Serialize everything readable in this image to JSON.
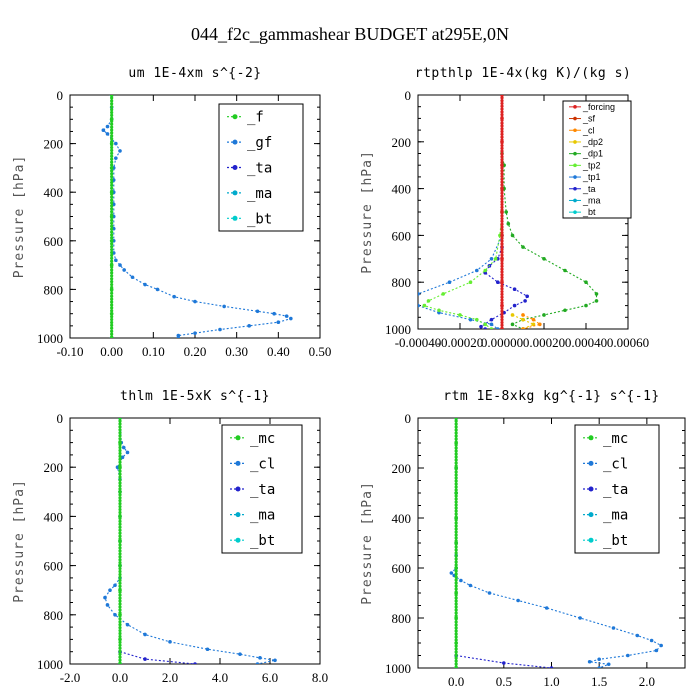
{
  "figure_title": "044_f2c_gammashear  BUDGET at295E,0N",
  "chart_data": [
    {
      "type": "line",
      "title": "um  1E-4xm s^{-2}",
      "ylabel": "Pressure [hPa]",
      "xlim": [
        -0.1,
        0.5
      ],
      "ylim": [
        1000,
        0
      ],
      "xticks": [
        "-0.10",
        "0.00",
        "0.10",
        "0.20",
        "0.30",
        "0.40",
        "0.50"
      ],
      "xtick_values": [
        -0.1,
        0.0,
        0.1,
        0.2,
        0.3,
        0.4,
        0.5
      ],
      "yticks": [
        "0",
        "200",
        "400",
        "600",
        "800",
        "1000"
      ],
      "ytick_values": [
        0,
        200,
        400,
        600,
        800,
        1000
      ],
      "legend_style": "large",
      "series": [
        {
          "name": "_f",
          "color": "#22cc22",
          "y": [
            0,
            100,
            200,
            300,
            400,
            500,
            600,
            700,
            800,
            900,
            1000
          ],
          "x": [
            0,
            0,
            0,
            0,
            0,
            0,
            0,
            0,
            0,
            0,
            0
          ]
        },
        {
          "name": "_gf",
          "color": "#1e78d8",
          "y": [
            0,
            50,
            100,
            130,
            145,
            160,
            200,
            230,
            260,
            300,
            350,
            400,
            450,
            500,
            550,
            600,
            650,
            680,
            700,
            720,
            750,
            780,
            800,
            830,
            850,
            870,
            890,
            900,
            910,
            920,
            935,
            950,
            965,
            980,
            990,
            1000
          ],
          "x": [
            0,
            0,
            0,
            -0.01,
            -0.02,
            -0.01,
            0.01,
            0.02,
            0.01,
            0.005,
            0.005,
            0.005,
            0.005,
            0.005,
            0.005,
            0.005,
            0.005,
            0.01,
            0.02,
            0.03,
            0.05,
            0.08,
            0.11,
            0.15,
            0.2,
            0.27,
            0.35,
            0.39,
            0.42,
            0.43,
            0.4,
            0.33,
            0.26,
            0.2,
            0.16,
            0.16
          ]
        },
        {
          "name": "_ta",
          "color": "#2222cc",
          "y": [
            0,
            1000
          ],
          "x": [
            0,
            0
          ]
        },
        {
          "name": "_ma",
          "color": "#00aacc",
          "y": [
            0,
            1000
          ],
          "x": [
            0,
            0
          ]
        },
        {
          "name": "_bt",
          "color": "#00cccc",
          "y": [
            0,
            1000
          ],
          "x": [
            0,
            0
          ]
        }
      ]
    },
    {
      "type": "line",
      "title": "rtpthlp  1E-4x(kg K)/(kg s)",
      "ylabel": "Pressure [hPa]",
      "xlim": [
        -0.0004,
        0.0006
      ],
      "ylim": [
        1000,
        0
      ],
      "xticks": [
        "-0.00040",
        "-0.00020",
        "0.00000",
        "0.00020",
        "0.00040",
        "0.00060"
      ],
      "xtick_values": [
        -0.0004,
        -0.0002,
        0.0,
        0.0002,
        0.0004,
        0.0006
      ],
      "yticks": [
        "0",
        "200",
        "400",
        "600",
        "800",
        "1000"
      ],
      "ytick_values": [
        0,
        200,
        400,
        600,
        800,
        1000
      ],
      "legend_style": "small",
      "series": [
        {
          "name": "_forcing",
          "color": "#dd2222",
          "y": [
            0,
            100,
            200,
            300,
            400,
            500,
            600,
            700,
            800,
            900,
            1000
          ],
          "x": [
            0,
            0,
            0,
            0,
            0,
            0,
            0,
            0,
            0,
            0,
            0
          ]
        },
        {
          "name": "_sf",
          "color": "#cc3300",
          "y": [
            0,
            1000
          ],
          "x": [
            0,
            0
          ]
        },
        {
          "name": "_cl",
          "color": "#ff8800",
          "y": [
            940,
            960,
            980,
            1000
          ],
          "x": [
            0.0001,
            0.00015,
            0.00018,
            0.0001
          ]
        },
        {
          "name": "_dp2",
          "color": "#e8c800",
          "y": [
            940,
            960,
            980,
            1000
          ],
          "x": [
            5e-05,
            0.0001,
            0.00015,
            0.0001
          ]
        },
        {
          "name": "_dp1",
          "color": "#22aa22",
          "y": [
            250,
            300,
            400,
            500,
            550,
            600,
            650,
            700,
            750,
            800,
            850,
            880,
            900,
            920,
            940,
            960,
            980,
            1000
          ],
          "x": [
            0,
            1e-05,
            1e-05,
            2e-05,
            3e-05,
            5e-05,
            0.0001,
            0.0002,
            0.0003,
            0.0004,
            0.00045,
            0.00045,
            0.0004,
            0.0003,
            0.0002,
            0.0001,
            5e-05,
            0.0001
          ]
        },
        {
          "name": "_tp2",
          "color": "#66ee33",
          "y": [
            500,
            600,
            700,
            750,
            800,
            850,
            880,
            900,
            920,
            940,
            960,
            980,
            1000
          ],
          "x": [
            0,
            -1e-05,
            -3e-05,
            -8e-05,
            -0.00015,
            -0.00028,
            -0.00035,
            -0.00037,
            -0.0003,
            -0.0002,
            -0.00012,
            -8e-05,
            -5e-05
          ]
        },
        {
          "name": "_tp1",
          "color": "#1e78d8",
          "y": [
            600,
            700,
            750,
            800,
            850,
            870,
            900,
            930,
            960,
            980,
            1000
          ],
          "x": [
            0,
            -5e-05,
            -0.00012,
            -0.00025,
            -0.0004,
            -0.00045,
            -0.0004,
            -0.0003,
            -0.00015,
            -5e-05,
            -2e-05
          ]
        },
        {
          "name": "_ta",
          "color": "#2222cc",
          "y": [
            650,
            700,
            730,
            760,
            800,
            830,
            860,
            880,
            900,
            930,
            960,
            990,
            1000
          ],
          "x": [
            0,
            -2e-05,
            -6e-05,
            -8e-05,
            -2e-05,
            6e-05,
            0.00012,
            0.00011,
            6e-05,
            1e-05,
            -5e-05,
            -0.0001,
            -8e-05
          ]
        },
        {
          "name": "_ma",
          "color": "#00aacc",
          "y": [
            0,
            1000
          ],
          "x": [
            0,
            0
          ]
        },
        {
          "name": "_bt",
          "color": "#00cccc",
          "y": [
            0,
            1000
          ],
          "x": [
            0,
            0
          ]
        }
      ]
    },
    {
      "type": "line",
      "title": "thlm  1E-5xK s^{-1}",
      "ylabel": "Pressure [hPa]",
      "xlim": [
        -2.0,
        8.0
      ],
      "ylim": [
        1000,
        0
      ],
      "xticks": [
        "-2.0",
        "0.0",
        "2.0",
        "4.0",
        "6.0",
        "8.0"
      ],
      "xtick_values": [
        -2,
        0,
        2,
        4,
        6,
        8
      ],
      "yticks": [
        "0",
        "200",
        "400",
        "600",
        "800",
        "1000"
      ],
      "ytick_values": [
        0,
        200,
        400,
        600,
        800,
        1000
      ],
      "legend_style": "large",
      "series": [
        {
          "name": "_mc",
          "color": "#22cc22",
          "y": [
            0,
            100,
            200,
            300,
            400,
            500,
            600,
            700,
            800,
            900,
            1000
          ],
          "x": [
            0,
            0,
            0,
            0,
            0,
            0,
            0,
            0,
            0,
            0,
            0
          ]
        },
        {
          "name": "_cl",
          "color": "#1e78d8",
          "y": [
            0,
            100,
            120,
            140,
            160,
            200,
            250,
            300,
            400,
            500,
            600,
            650,
            680,
            700,
            730,
            760,
            800,
            840,
            880,
            910,
            940,
            960,
            975,
            985,
            1000
          ],
          "x": [
            0,
            0.05,
            0.15,
            0.3,
            0.1,
            -0.1,
            0,
            0,
            0,
            0,
            0,
            0,
            -0.2,
            -0.4,
            -0.6,
            -0.5,
            -0.2,
            0.3,
            1.0,
            2.0,
            3.5,
            4.8,
            5.6,
            6.2,
            5.5
          ]
        },
        {
          "name": "_ta",
          "color": "#2222cc",
          "y": [
            950,
            980,
            1000
          ],
          "x": [
            0,
            1.0,
            3.0
          ]
        },
        {
          "name": "_ma",
          "color": "#00aacc",
          "y": [
            0,
            1000
          ],
          "x": [
            0,
            0
          ]
        },
        {
          "name": "_bt",
          "color": "#00cccc",
          "y": [
            0,
            1000
          ],
          "x": [
            0,
            0
          ]
        }
      ]
    },
    {
      "type": "line",
      "title": "rtm  1E-8xkg kg^{-1} s^{-1}",
      "ylabel": "Pressure [hPa]",
      "xlim": [
        -0.4,
        2.4
      ],
      "ylim": [
        1000,
        0
      ],
      "xticks": [
        "0.0",
        "0.5",
        "1.0",
        "1.5",
        "2.0"
      ],
      "xtick_values": [
        0,
        0.5,
        1.0,
        1.5,
        2.0
      ],
      "yticks": [
        "0",
        "200",
        "400",
        "600",
        "800",
        "1000"
      ],
      "ytick_values": [
        0,
        200,
        400,
        600,
        800,
        1000
      ],
      "legend_style": "large",
      "series": [
        {
          "name": "_mc",
          "color": "#22cc22",
          "y": [
            0,
            100,
            200,
            300,
            400,
            500,
            600,
            700,
            800,
            900,
            1000
          ],
          "x": [
            0,
            0,
            0,
            0,
            0,
            0,
            0,
            0,
            0,
            0,
            0
          ]
        },
        {
          "name": "_cl",
          "color": "#1e78d8",
          "y": [
            0,
            200,
            300,
            400,
            500,
            550,
            600,
            620,
            630,
            650,
            670,
            700,
            730,
            760,
            800,
            840,
            870,
            890,
            910,
            930,
            950,
            965,
            975,
            985,
            1000
          ],
          "x": [
            0,
            0,
            0,
            0,
            0,
            0,
            0,
            -0.05,
            -0.02,
            0.05,
            0.15,
            0.35,
            0.65,
            0.95,
            1.3,
            1.65,
            1.9,
            2.05,
            2.15,
            2.1,
            1.8,
            1.5,
            1.4,
            1.6,
            1.5
          ]
        },
        {
          "name": "_ta",
          "color": "#2222cc",
          "y": [
            950,
            980,
            1000
          ],
          "x": [
            0,
            0.5,
            1.0
          ]
        },
        {
          "name": "_ma",
          "color": "#00aacc",
          "y": [
            0,
            1000
          ],
          "x": [
            0,
            0
          ]
        },
        {
          "name": "_bt",
          "color": "#00cccc",
          "y": [
            0,
            1000
          ],
          "x": [
            0,
            0
          ]
        }
      ]
    }
  ]
}
